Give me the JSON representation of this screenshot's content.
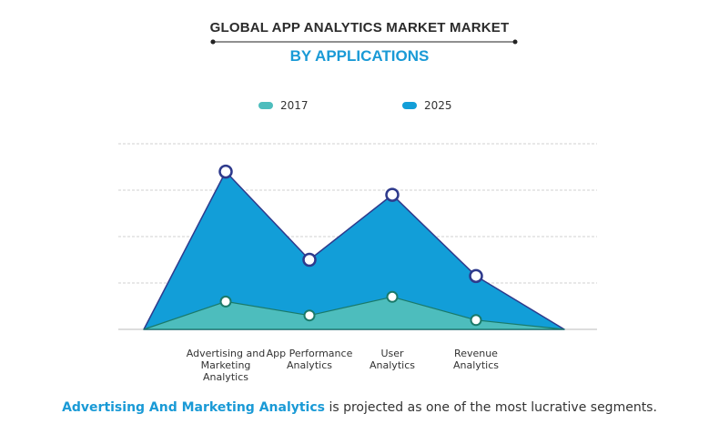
{
  "header": {
    "title": "GLOBAL APP ANALYTICS  MARKET MARKET",
    "subtitle": "BY APPLICATIONS"
  },
  "colors": {
    "series_2017": "#4dbdbd",
    "series_2025": "#129ed8",
    "marker_2017": "#1a7a6a",
    "marker_2025": "#2e3a8c"
  },
  "footer": {
    "highlight": "Advertising And Marketing Analytics",
    "rest": " is projected as one of the most lucrative segments."
  },
  "chart_data": {
    "type": "area",
    "categories": [
      "Advertising and Marketing Analytics",
      "App Performance Analytics",
      "User Analytics",
      "Revenue Analytics"
    ],
    "category_lines": [
      [
        "Advertising and",
        "Marketing",
        "Analytics"
      ],
      [
        "App Performance",
        "Analytics"
      ],
      [
        "User",
        "Analytics"
      ],
      [
        "Revenue",
        "Analytics"
      ]
    ],
    "series": [
      {
        "name": "2017",
        "values": [
          0.6,
          0.3,
          0.7,
          0.2
        ]
      },
      {
        "name": "2025",
        "values": [
          3.4,
          1.5,
          2.9,
          1.15
        ]
      }
    ],
    "ylim": [
      0,
      4
    ],
    "grid": true,
    "legend": "top-center",
    "xlabel": "",
    "ylabel": ""
  }
}
